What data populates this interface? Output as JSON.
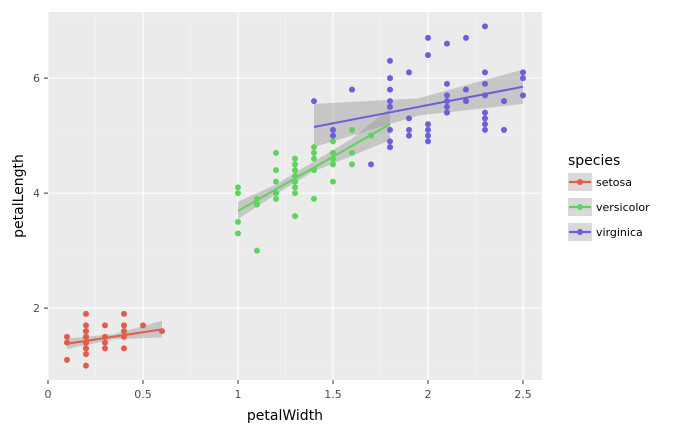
{
  "chart_data": {
    "type": "scatter",
    "xlabel": "petalWidth",
    "ylabel": "petalLength",
    "xlim": [
      0,
      2.6
    ],
    "ylim": [
      0.75,
      7.15
    ],
    "x_ticks": [
      0,
      0.5,
      1,
      1.5,
      2,
      2.5
    ],
    "x_tick_labels": [
      "0",
      "0.5",
      "1",
      "1.5",
      "2",
      "2.5"
    ],
    "y_ticks": [
      2,
      4,
      6
    ],
    "y_tick_labels": [
      "2",
      "4",
      "6"
    ],
    "grid": true,
    "legend": {
      "title": "species",
      "position": "right"
    },
    "series": [
      {
        "name": "setosa",
        "color": "#e05c4b",
        "points": [
          [
            0.1,
            1.4
          ],
          [
            0.1,
            1.5
          ],
          [
            0.1,
            1.1
          ],
          [
            0.2,
            1.4
          ],
          [
            0.2,
            1.3
          ],
          [
            0.2,
            1.5
          ],
          [
            0.2,
            1.4
          ],
          [
            0.2,
            1.5
          ],
          [
            0.2,
            1.6
          ],
          [
            0.2,
            1.4
          ],
          [
            0.2,
            1.2
          ],
          [
            0.2,
            1.3
          ],
          [
            0.2,
            1.7
          ],
          [
            0.2,
            1.9
          ],
          [
            0.2,
            1.6
          ],
          [
            0.2,
            1.0
          ],
          [
            0.3,
            1.4
          ],
          [
            0.3,
            1.3
          ],
          [
            0.3,
            1.5
          ],
          [
            0.3,
            1.7
          ],
          [
            0.4,
            1.5
          ],
          [
            0.4,
            1.7
          ],
          [
            0.4,
            1.9
          ],
          [
            0.4,
            1.6
          ],
          [
            0.4,
            1.3
          ],
          [
            0.5,
            1.7
          ],
          [
            0.6,
            1.6
          ]
        ],
        "trend": [
          [
            0.1,
            1.38
          ],
          [
            0.6,
            1.63
          ]
        ],
        "band": {
          "x": [
            0.1,
            0.35,
            0.6
          ],
          "low": [
            1.29,
            1.46,
            1.49
          ],
          "high": [
            1.47,
            1.55,
            1.78
          ]
        }
      },
      {
        "name": "versicolor",
        "color": "#5fd35f",
        "points": [
          [
            1.0,
            3.3
          ],
          [
            1.0,
            3.5
          ],
          [
            1.0,
            4.0
          ],
          [
            1.0,
            4.1
          ],
          [
            1.1,
            3.0
          ],
          [
            1.1,
            3.8
          ],
          [
            1.1,
            3.9
          ],
          [
            1.2,
            3.9
          ],
          [
            1.2,
            4.0
          ],
          [
            1.2,
            4.2
          ],
          [
            1.2,
            4.4
          ],
          [
            1.2,
            4.7
          ],
          [
            1.3,
            3.6
          ],
          [
            1.3,
            4.0
          ],
          [
            1.3,
            4.1
          ],
          [
            1.3,
            4.2
          ],
          [
            1.3,
            4.3
          ],
          [
            1.3,
            4.4
          ],
          [
            1.3,
            4.5
          ],
          [
            1.3,
            4.6
          ],
          [
            1.4,
            3.9
          ],
          [
            1.4,
            4.4
          ],
          [
            1.4,
            4.6
          ],
          [
            1.4,
            4.7
          ],
          [
            1.4,
            4.8
          ],
          [
            1.5,
            4.2
          ],
          [
            1.5,
            4.5
          ],
          [
            1.5,
            4.6
          ],
          [
            1.5,
            4.7
          ],
          [
            1.5,
            4.9
          ],
          [
            1.6,
            4.5
          ],
          [
            1.6,
            4.7
          ],
          [
            1.6,
            5.1
          ],
          [
            1.7,
            5.0
          ],
          [
            1.8,
            4.8
          ]
        ],
        "trend": [
          [
            1.0,
            3.69
          ],
          [
            1.8,
            5.2
          ]
        ],
        "band": {
          "x": [
            1.0,
            1.2,
            1.4,
            1.6,
            1.8
          ],
          "low": [
            3.55,
            3.98,
            4.38,
            4.65,
            4.92
          ],
          "high": [
            3.85,
            4.15,
            4.55,
            4.95,
            5.48
          ]
        }
      },
      {
        "name": "virginica",
        "color": "#6b5fdc",
        "points": [
          [
            1.4,
            5.6
          ],
          [
            1.5,
            5.0
          ],
          [
            1.5,
            5.1
          ],
          [
            1.6,
            5.8
          ],
          [
            1.7,
            4.5
          ],
          [
            1.8,
            4.8
          ],
          [
            1.8,
            4.9
          ],
          [
            1.8,
            5.1
          ],
          [
            1.8,
            5.5
          ],
          [
            1.8,
            5.6
          ],
          [
            1.8,
            5.8
          ],
          [
            1.8,
            6.0
          ],
          [
            1.8,
            6.3
          ],
          [
            1.9,
            5.0
          ],
          [
            1.9,
            5.1
          ],
          [
            1.9,
            5.3
          ],
          [
            1.9,
            6.1
          ],
          [
            2.0,
            4.9
          ],
          [
            2.0,
            5.0
          ],
          [
            2.0,
            5.1
          ],
          [
            2.0,
            5.2
          ],
          [
            2.0,
            6.4
          ],
          [
            2.0,
            6.7
          ],
          [
            2.1,
            5.4
          ],
          [
            2.1,
            5.5
          ],
          [
            2.1,
            5.6
          ],
          [
            2.1,
            5.7
          ],
          [
            2.1,
            5.9
          ],
          [
            2.1,
            6.6
          ],
          [
            2.2,
            5.6
          ],
          [
            2.2,
            5.8
          ],
          [
            2.2,
            6.7
          ],
          [
            2.3,
            5.1
          ],
          [
            2.3,
            5.2
          ],
          [
            2.3,
            5.3
          ],
          [
            2.3,
            5.4
          ],
          [
            2.3,
            5.7
          ],
          [
            2.3,
            5.9
          ],
          [
            2.3,
            6.1
          ],
          [
            2.3,
            6.9
          ],
          [
            2.4,
            5.1
          ],
          [
            2.4,
            5.6
          ],
          [
            2.5,
            5.7
          ],
          [
            2.5,
            6.0
          ],
          [
            2.5,
            6.1
          ]
        ],
        "trend": [
          [
            1.4,
            5.15
          ],
          [
            2.5,
            5.85
          ]
        ],
        "band": {
          "x": [
            1.4,
            1.95,
            2.5
          ],
          "low": [
            4.8,
            5.35,
            5.55
          ],
          "high": [
            5.55,
            5.65,
            6.15
          ]
        }
      }
    ]
  }
}
